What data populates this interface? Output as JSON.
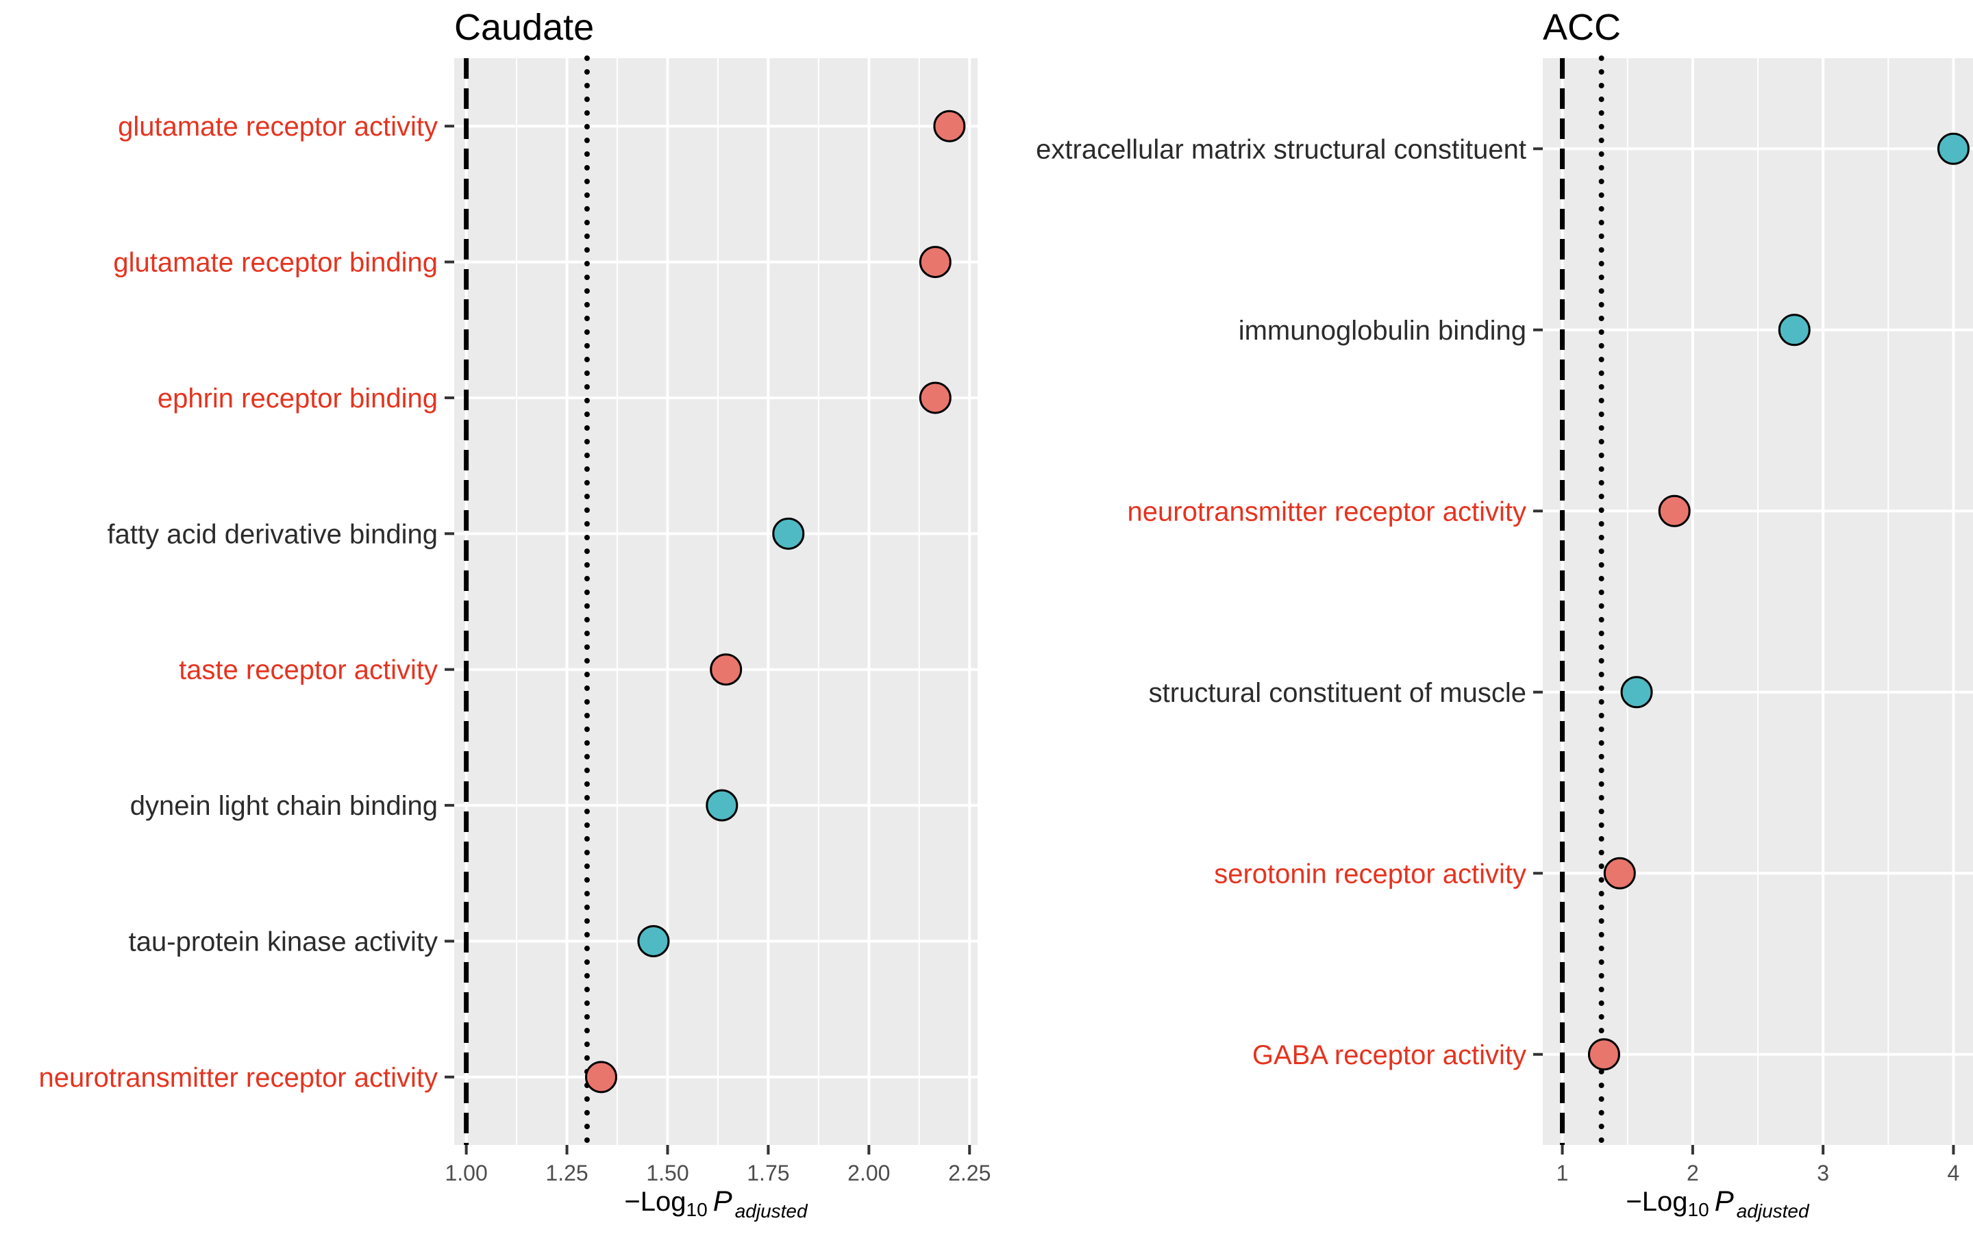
{
  "chart_data": [
    {
      "type": "scatter",
      "title": "Caudate",
      "xlabel_prefix": "−Log",
      "xlabel_sub": "10",
      "xlabel_var": "P",
      "xlabel_var_sub": "adjusted",
      "xlim": [
        0.97,
        2.27
      ],
      "xticks": [
        1.0,
        1.25,
        1.5,
        1.75,
        2.0,
        2.25
      ],
      "xtick_labels": [
        "1.00",
        "1.25",
        "1.50",
        "1.75",
        "2.00",
        "2.25"
      ],
      "ref_lines": [
        {
          "x": 1.0,
          "style": "dashed"
        },
        {
          "x": 1.3,
          "style": "dotted"
        }
      ],
      "grid": true,
      "points": [
        {
          "label": "glutamate receptor activity",
          "x": 2.2,
          "group": "red"
        },
        {
          "label": "glutamate receptor binding",
          "x": 2.165,
          "group": "red"
        },
        {
          "label": "ephrin receptor binding",
          "x": 2.165,
          "group": "red"
        },
        {
          "label": "fatty acid derivative binding",
          "x": 1.8,
          "group": "teal"
        },
        {
          "label": "taste receptor activity",
          "x": 1.645,
          "group": "red"
        },
        {
          "label": "dynein light chain binding",
          "x": 1.635,
          "group": "teal"
        },
        {
          "label": "tau-protein kinase activity",
          "x": 1.465,
          "group": "teal"
        },
        {
          "label": "neurotransmitter receptor activity",
          "x": 1.335,
          "group": "red"
        }
      ]
    },
    {
      "type": "scatter",
      "title": "ACC",
      "xlabel_prefix": "−Log",
      "xlabel_sub": "10",
      "xlabel_var": "P",
      "xlabel_var_sub": "adjusted",
      "xlim": [
        0.85,
        4.15
      ],
      "xticks": [
        1,
        2,
        3,
        4
      ],
      "xtick_labels": [
        "1",
        "2",
        "3",
        "4"
      ],
      "ref_lines": [
        {
          "x": 1.0,
          "style": "dashed"
        },
        {
          "x": 1.3,
          "style": "dotted"
        }
      ],
      "grid": true,
      "points": [
        {
          "label": "extracellular matrix structural constituent",
          "x": 4.0,
          "group": "teal"
        },
        {
          "label": "immunoglobulin binding",
          "x": 2.78,
          "group": "teal"
        },
        {
          "label": "neurotransmitter receptor activity",
          "x": 1.86,
          "group": "red"
        },
        {
          "label": "structural constituent of muscle",
          "x": 1.57,
          "group": "teal"
        },
        {
          "label": "serotonin receptor activity",
          "x": 1.44,
          "group": "red"
        },
        {
          "label": "GABA receptor activity",
          "x": 1.32,
          "group": "red"
        }
      ]
    }
  ],
  "colors": {
    "red_fill": "#E8766D",
    "teal_fill": "#4FBAC3",
    "red_label": "#E5331F",
    "dark_label": "#2B2B2B",
    "panel_bg": "#EBEBEB",
    "grid": "#FFFFFF",
    "tick_text": "#4D4D4D"
  }
}
